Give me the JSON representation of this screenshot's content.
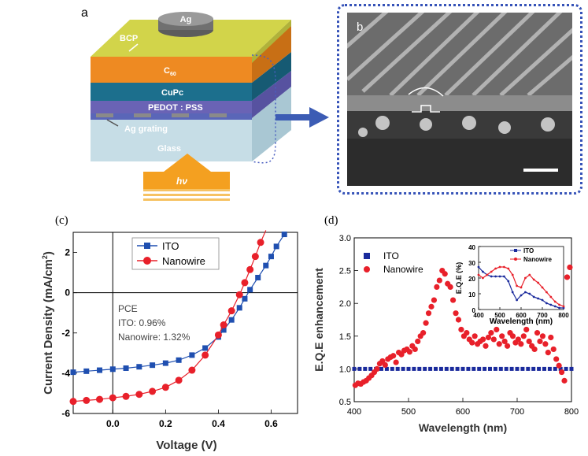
{
  "panel_a": {
    "label": "a",
    "layers": {
      "ag": "Ag",
      "bcp": "BCP",
      "c60": "C",
      "c60_sub": "60",
      "cupc": "CuPc",
      "pedot": "PEDOT : PSS",
      "grating": "Ag grating",
      "glass": "Glass"
    },
    "light": "hν"
  },
  "panel_b": {
    "label": "b"
  },
  "chart_data": [
    {
      "panel": "(c)",
      "type": "line",
      "xlabel": "Voltage (V)",
      "ylabel": "Current Density (mA/cm",
      "ylabel_sup": "2",
      "ylabel_end": ")",
      "xlim": [
        -0.15,
        0.7
      ],
      "ylim": [
        -6,
        3
      ],
      "xticks": [
        "0.0",
        "0.2",
        "0.4",
        "0.6"
      ],
      "xtick_values": [
        0.0,
        0.2,
        0.4,
        0.6
      ],
      "yticks": [
        "-6",
        "-4",
        "-2",
        "0",
        "2"
      ],
      "ytick_values": [
        -6,
        -4,
        -2,
        0,
        2
      ],
      "annotation": [
        "PCE",
        "ITO: 0.96%",
        "Nanowire: 1.32%"
      ],
      "legend_position": "top-right",
      "series": [
        {
          "name": "ITO",
          "marker": "square",
          "color": "#1f4fb0",
          "x": [
            -0.15,
            -0.1,
            -0.05,
            0.0,
            0.05,
            0.1,
            0.15,
            0.2,
            0.25,
            0.3,
            0.35,
            0.4,
            0.42,
            0.45,
            0.48,
            0.5,
            0.52,
            0.55,
            0.58,
            0.6,
            0.62,
            0.65
          ],
          "y": [
            -3.95,
            -3.9,
            -3.85,
            -3.8,
            -3.75,
            -3.68,
            -3.6,
            -3.5,
            -3.35,
            -3.1,
            -2.75,
            -2.2,
            -1.85,
            -1.35,
            -0.75,
            -0.3,
            0.15,
            0.75,
            1.35,
            1.8,
            2.3,
            2.9
          ]
        },
        {
          "name": "Nanowire",
          "marker": "circle",
          "color": "#e8202a",
          "x": [
            -0.15,
            -0.1,
            -0.05,
            0.0,
            0.05,
            0.1,
            0.15,
            0.2,
            0.25,
            0.3,
            0.35,
            0.4,
            0.42,
            0.45,
            0.48,
            0.5,
            0.52,
            0.54,
            0.56,
            0.58
          ],
          "y": [
            -5.4,
            -5.35,
            -5.3,
            -5.22,
            -5.15,
            -5.05,
            -4.9,
            -4.7,
            -4.35,
            -3.85,
            -3.1,
            -2.1,
            -1.6,
            -0.9,
            -0.1,
            0.5,
            1.15,
            1.8,
            2.5,
            3.1
          ]
        }
      ]
    },
    {
      "panel": "(d)",
      "type": "scatter",
      "xlabel": "Wavelength (nm)",
      "ylabel": "E.Q.E enhancement",
      "xlim": [
        400,
        800
      ],
      "ylim": [
        0.5,
        3.0
      ],
      "xticks": [
        "400",
        "500",
        "600",
        "700",
        "800"
      ],
      "xtick_values": [
        400,
        500,
        600,
        700,
        800
      ],
      "yticks": [
        "0.5",
        "1.0",
        "1.5",
        "2.0",
        "2.5",
        "3.0"
      ],
      "ytick_values": [
        0.5,
        1.0,
        1.5,
        2.0,
        2.5,
        3.0
      ],
      "legend_position": "top-left",
      "series": [
        {
          "name": "ITO",
          "marker": "square",
          "color": "#1a2a9c",
          "x": [
            400,
            410,
            420,
            430,
            440,
            450,
            460,
            470,
            480,
            490,
            500,
            510,
            520,
            530,
            540,
            550,
            560,
            570,
            580,
            590,
            600,
            610,
            620,
            630,
            640,
            650,
            660,
            670,
            680,
            690,
            700,
            710,
            720,
            730,
            740,
            750,
            760,
            770,
            780,
            790,
            800
          ],
          "y": [
            1,
            1,
            1,
            1,
            1,
            1,
            1,
            1,
            1,
            1,
            1,
            1,
            1,
            1,
            1,
            1,
            1,
            1,
            1,
            1,
            1,
            1,
            1,
            1,
            1,
            1,
            1,
            1,
            1,
            1,
            1,
            1,
            1,
            1,
            1,
            1,
            1,
            1,
            1,
            1,
            1
          ]
        },
        {
          "name": "Nanowire",
          "marker": "circle",
          "color": "#e8202a",
          "x": [
            402,
            407,
            412,
            417,
            422,
            427,
            432,
            437,
            442,
            447,
            452,
            457,
            462,
            467,
            472,
            477,
            482,
            487,
            492,
            497,
            502,
            507,
            512,
            517,
            522,
            527,
            532,
            537,
            542,
            547,
            552,
            557,
            562,
            567,
            572,
            577,
            582,
            587,
            592,
            597,
            602,
            607,
            612,
            617,
            622,
            627,
            632,
            637,
            642,
            647,
            652,
            657,
            662,
            667,
            672,
            677,
            682,
            687,
            692,
            697,
            702,
            707,
            712,
            717,
            722,
            727,
            732,
            737,
            742,
            747,
            752,
            757,
            762,
            767,
            772,
            777,
            782,
            787,
            792,
            797
          ],
          "y": [
            0.75,
            0.78,
            0.77,
            0.8,
            0.82,
            0.86,
            0.9,
            0.95,
            1.0,
            1.08,
            1.12,
            1.06,
            1.15,
            1.18,
            1.2,
            1.1,
            1.25,
            1.22,
            1.28,
            1.3,
            1.26,
            1.35,
            1.3,
            1.42,
            1.5,
            1.55,
            1.7,
            1.85,
            1.95,
            2.05,
            2.25,
            2.35,
            2.5,
            2.45,
            2.3,
            2.25,
            2.05,
            1.85,
            1.75,
            1.6,
            1.5,
            1.55,
            1.45,
            1.4,
            1.5,
            1.38,
            1.42,
            1.45,
            1.35,
            1.48,
            1.55,
            1.45,
            1.6,
            1.38,
            1.5,
            1.42,
            1.35,
            1.55,
            1.5,
            1.4,
            1.45,
            1.38,
            1.5,
            1.6,
            1.42,
            1.35,
            1.3,
            1.55,
            1.42,
            1.5,
            1.38,
            1.25,
            1.48,
            1.3,
            1.15,
            1.05,
            0.95,
            0.82,
            2.4,
            2.55
          ]
        }
      ],
      "inset": {
        "type": "line",
        "xlabel": "Wavelength (nm)",
        "ylabel": "E.Q.E (%)",
        "xlim": [
          400,
          800
        ],
        "ylim": [
          0,
          40
        ],
        "xticks": [
          "400",
          "500",
          "600",
          "700",
          "800"
        ],
        "xtick_values": [
          400,
          500,
          600,
          700,
          800
        ],
        "yticks": [
          "0",
          "10",
          "20",
          "30",
          "40"
        ],
        "ytick_values": [
          0,
          10,
          20,
          30,
          40
        ],
        "series": [
          {
            "name": "ITO",
            "color": "#1a2a9c",
            "x": [
              400,
              420,
              440,
              460,
              480,
              500,
              520,
              540,
              560,
              580,
              600,
              620,
              640,
              660,
              680,
              700,
              720,
              740,
              760,
              780,
              800
            ],
            "y": [
              27,
              24,
              22,
              21,
              21,
              21,
              21,
              18,
              11,
              6,
              9,
              11,
              10,
              8,
              7,
              6,
              4,
              3,
              2,
              1,
              1
            ]
          },
          {
            "name": "Nanowire",
            "color": "#e8202a",
            "x": [
              400,
              420,
              440,
              460,
              480,
              500,
              520,
              540,
              560,
              580,
              600,
              620,
              640,
              660,
              680,
              700,
              720,
              740,
              760,
              780,
              800
            ],
            "y": [
              22,
              20,
              22,
              24,
              26,
              27,
              27,
              26,
              22,
              15,
              14,
              20,
              22,
              19,
              17,
              14,
              11,
              8,
              5,
              3,
              2
            ]
          }
        ]
      }
    }
  ]
}
